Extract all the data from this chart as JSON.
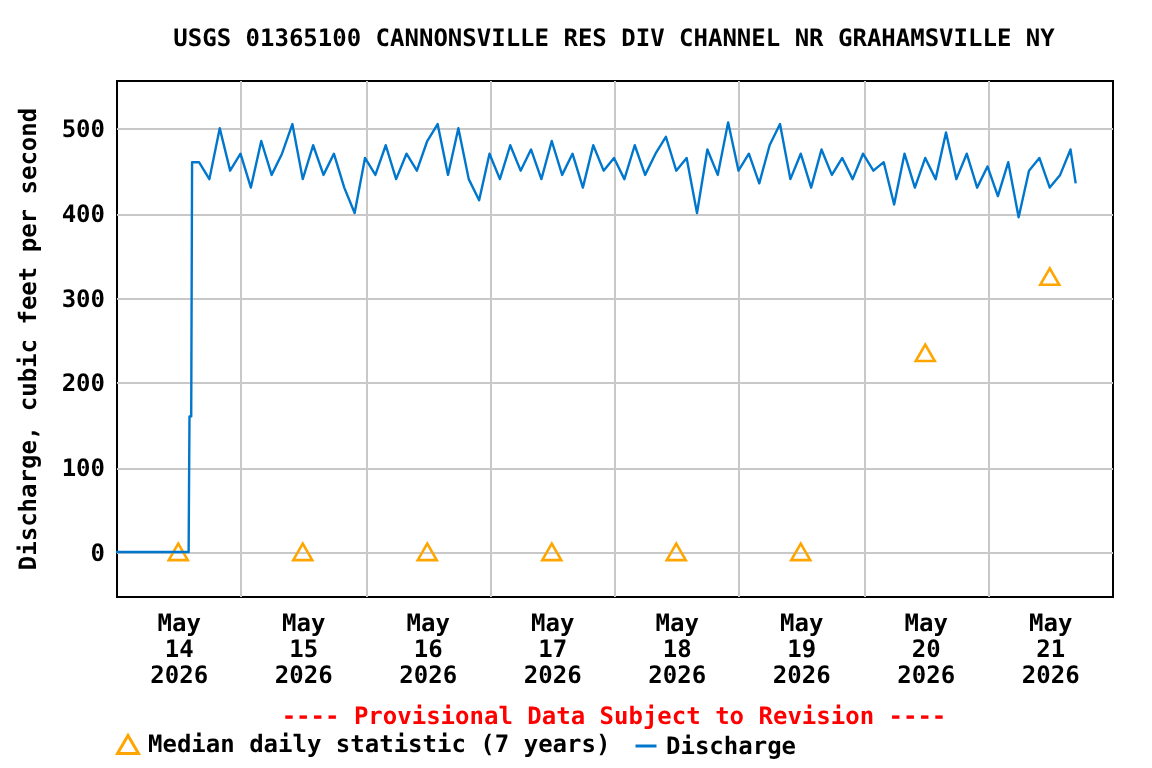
{
  "chart_data": {
    "type": "line",
    "title": "USGS 01365100 CANNONSVILLE RES DIV CHANNEL NR GRAHAMSVILLE NY",
    "ylabel": "Discharge, cubic feet per second",
    "annotations": [
      "---- Provisional Data Subject to Revision ----"
    ],
    "xlim": [
      "2026-05-14T00:00",
      "2026-05-22T00:00"
    ],
    "xticks": [
      {
        "value": "2026-05-14T12:00",
        "label": "May\n14\n2026"
      },
      {
        "value": "2026-05-15T00:00",
        "label": null
      },
      {
        "value": "2026-05-15T12:00",
        "label": "May\n15\n2026"
      },
      {
        "value": "2026-05-16T00:00",
        "label": null
      },
      {
        "value": "2026-05-16T12:00",
        "label": "May\n16\n2026"
      },
      {
        "value": "2026-05-17T00:00",
        "label": null
      },
      {
        "value": "2026-05-17T12:00",
        "label": "May\n17\n2026"
      },
      {
        "value": "2026-05-18T00:00",
        "label": null
      },
      {
        "value": "2026-05-18T12:00",
        "label": "May\n18\n2026"
      },
      {
        "value": "2026-05-19T00:00",
        "label": null
      },
      {
        "value": "2026-05-19T12:00",
        "label": "May\n19\n2026"
      },
      {
        "value": "2026-05-20T00:00",
        "label": null
      },
      {
        "value": "2026-05-20T12:00",
        "label": "May\n20\n2026"
      },
      {
        "value": "2026-05-21T00:00",
        "label": null
      },
      {
        "value": "2026-05-21T12:00",
        "label": "May\n21\n2026"
      }
    ],
    "ylim": [
      -52,
      557
    ],
    "yticks": [
      0,
      100,
      200,
      300,
      400,
      500
    ],
    "grid": true,
    "legend": "bottom",
    "series": [
      {
        "name": "Median daily statistic (7 years)",
        "type": "scatter",
        "marker": "triangle",
        "color": "#ffa500",
        "x": [
          "2026-05-14T12:00",
          "2026-05-15T12:00",
          "2026-05-16T12:00",
          "2026-05-17T12:00",
          "2026-05-18T12:00",
          "2026-05-19T12:00",
          "2026-05-20T12:00",
          "2026-05-21T12:00"
        ],
        "values": [
          0,
          0,
          0,
          0,
          0,
          0,
          235,
          325
        ]
      },
      {
        "name": "Discharge",
        "color": "#0077cc",
        "x": [
          "2026-05-14T00:00",
          "2026-05-14T14:00",
          "2026-05-14T14:10",
          "2026-05-14T14:30",
          "2026-05-14T14:40",
          "2026-05-14T16:00",
          "2026-05-14T18:00",
          "2026-05-14T20:00",
          "2026-05-14T22:00",
          "2026-05-15T00:00",
          "2026-05-15T02:00",
          "2026-05-15T04:00",
          "2026-05-15T06:00",
          "2026-05-15T08:00",
          "2026-05-15T10:00",
          "2026-05-15T12:00",
          "2026-05-15T14:00",
          "2026-05-15T16:00",
          "2026-05-15T18:00",
          "2026-05-15T20:00",
          "2026-05-15T22:00",
          "2026-05-16T00:00",
          "2026-05-16T02:00",
          "2026-05-16T04:00",
          "2026-05-16T06:00",
          "2026-05-16T08:00",
          "2026-05-16T10:00",
          "2026-05-16T12:00",
          "2026-05-16T14:00",
          "2026-05-16T16:00",
          "2026-05-16T18:00",
          "2026-05-16T20:00",
          "2026-05-16T22:00",
          "2026-05-17T00:00",
          "2026-05-17T02:00",
          "2026-05-17T04:00",
          "2026-05-17T06:00",
          "2026-05-17T08:00",
          "2026-05-17T10:00",
          "2026-05-17T12:00",
          "2026-05-17T14:00",
          "2026-05-17T16:00",
          "2026-05-17T18:00",
          "2026-05-17T20:00",
          "2026-05-17T22:00",
          "2026-05-18T00:00",
          "2026-05-18T02:00",
          "2026-05-18T04:00",
          "2026-05-18T06:00",
          "2026-05-18T08:00",
          "2026-05-18T10:00",
          "2026-05-18T12:00",
          "2026-05-18T14:00",
          "2026-05-18T16:00",
          "2026-05-18T18:00",
          "2026-05-18T20:00",
          "2026-05-18T22:00",
          "2026-05-19T00:00",
          "2026-05-19T02:00",
          "2026-05-19T04:00",
          "2026-05-19T06:00",
          "2026-05-19T08:00",
          "2026-05-19T10:00",
          "2026-05-19T12:00",
          "2026-05-19T14:00",
          "2026-05-19T16:00",
          "2026-05-19T18:00",
          "2026-05-19T20:00",
          "2026-05-19T22:00",
          "2026-05-20T00:00",
          "2026-05-20T02:00",
          "2026-05-20T04:00",
          "2026-05-20T06:00",
          "2026-05-20T08:00",
          "2026-05-20T10:00",
          "2026-05-20T12:00",
          "2026-05-20T14:00",
          "2026-05-20T16:00",
          "2026-05-20T18:00",
          "2026-05-20T20:00",
          "2026-05-20T22:00",
          "2026-05-21T00:00",
          "2026-05-21T02:00",
          "2026-05-21T04:00",
          "2026-05-21T06:00",
          "2026-05-21T08:00",
          "2026-05-21T10:00",
          "2026-05-21T12:00",
          "2026-05-21T14:00",
          "2026-05-21T16:00",
          "2026-05-21T17:00"
        ],
        "values": [
          0,
          0,
          160,
          160,
          460,
          460,
          440,
          500,
          450,
          470,
          430,
          485,
          445,
          470,
          505,
          440,
          480,
          445,
          470,
          430,
          400,
          465,
          445,
          480,
          440,
          470,
          450,
          485,
          505,
          445,
          500,
          440,
          415,
          470,
          440,
          480,
          450,
          475,
          440,
          485,
          445,
          470,
          430,
          480,
          450,
          465,
          440,
          480,
          445,
          470,
          490,
          450,
          465,
          400,
          475,
          445,
          507,
          450,
          470,
          435,
          480,
          505,
          440,
          470,
          430,
          475,
          445,
          465,
          440,
          470,
          450,
          460,
          410,
          470,
          430,
          465,
          440,
          495,
          440,
          470,
          430,
          455,
          420,
          460,
          395,
          450,
          465,
          430,
          445,
          475,
          435
        ]
      }
    ]
  }
}
